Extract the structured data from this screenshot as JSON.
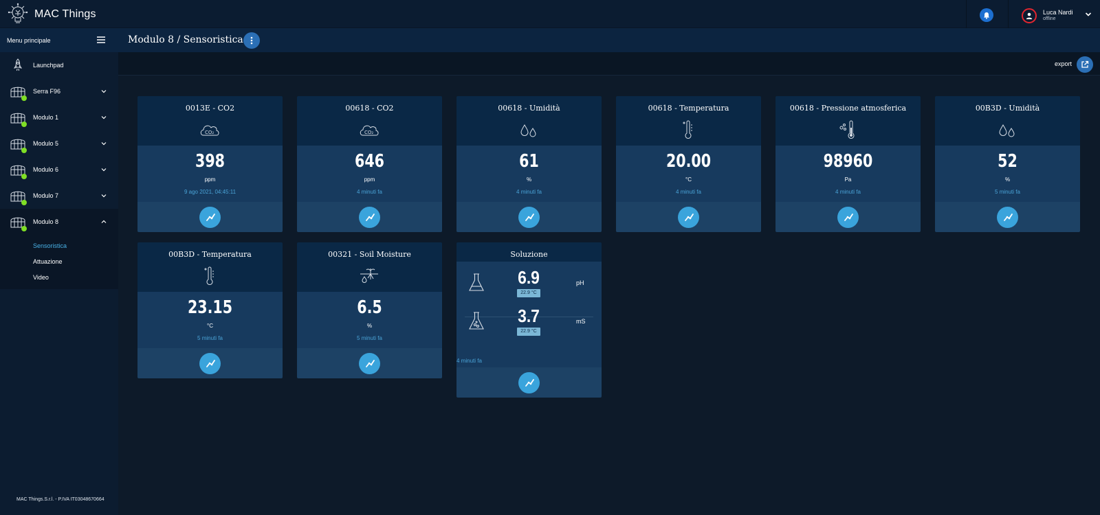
{
  "app": {
    "title": "MAC Things",
    "logo_icon": "lightbulb-network-icon"
  },
  "user": {
    "name": "Luca Nardi",
    "status": "offline",
    "status_color": "#e3262f"
  },
  "colors": {
    "accent": "#3aa4dc",
    "online_dot": "#7fde25",
    "active_subitem": "#49b1e6"
  },
  "sidebar": {
    "header": "Menu principale",
    "items": [
      {
        "label": "Launchpad",
        "icon": "rocket-icon",
        "online": false,
        "chevron": "none"
      },
      {
        "label": "Serra F96",
        "icon": "greenhouse-icon",
        "online": true,
        "chevron": "down"
      },
      {
        "label": "Modulo 1",
        "icon": "greenhouse-icon",
        "online": true,
        "chevron": "down"
      },
      {
        "label": "Modulo 5",
        "icon": "greenhouse-icon",
        "online": true,
        "chevron": "down"
      },
      {
        "label": "Modulo 6",
        "icon": "greenhouse-icon",
        "online": true,
        "chevron": "down"
      },
      {
        "label": "Modulo 7",
        "icon": "greenhouse-icon",
        "online": true,
        "chevron": "down"
      },
      {
        "label": "Modulo 8",
        "icon": "greenhouse-icon",
        "online": true,
        "chevron": "up"
      }
    ],
    "subitems": [
      {
        "label": "Sensoristica",
        "current": true
      },
      {
        "label": "Attuazione",
        "current": false
      },
      {
        "label": "Video",
        "current": false
      }
    ],
    "footer": "MAC Things.S.r.l. - P.IVA IT03048670664"
  },
  "page": {
    "title": "Modulo 8 / Sensoristica",
    "export_label": "export"
  },
  "cards": [
    {
      "title": "0013E - CO2",
      "icon": "co2-cloud-icon",
      "value": "398",
      "unit": "ppm",
      "time": "9 ago 2021, 04:45:11"
    },
    {
      "title": "00618 - CO2",
      "icon": "co2-cloud-icon",
      "value": "646",
      "unit": "ppm",
      "time": "4 minuti fa"
    },
    {
      "title": "00618 - Umidità",
      "icon": "water-drops-icon",
      "value": "61",
      "unit": "%",
      "time": "4 minuti fa"
    },
    {
      "title": "00618 - Temperatura",
      "icon": "thermometer-icon",
      "value": "20.00",
      "unit": "°C",
      "time": "4 minuti fa"
    },
    {
      "title": "00618 - Pressione atmosferica",
      "icon": "pressure-thermometer-icon",
      "value": "98960",
      "unit": "Pa",
      "time": "4 minuti fa"
    },
    {
      "title": "00B3D - Umidità",
      "icon": "water-drops-icon",
      "value": "52",
      "unit": "%",
      "time": "5 minuti fa"
    },
    {
      "title": "00B3D - Temperatura",
      "icon": "thermometer-icon",
      "value": "23.15",
      "unit": "°C",
      "time": "5 minuti fa"
    },
    {
      "title": "00321 - Soil Moisture",
      "icon": "soil-moisture-icon",
      "value": "6.5",
      "unit": "%",
      "time": "5 minuti fa"
    }
  ],
  "solution": {
    "title": "Soluzione",
    "ph": {
      "value": "6.9",
      "temp": "22.9 °C",
      "unit": "pH",
      "icon": "flask-icon"
    },
    "ec": {
      "value": "3.7",
      "temp": "22.9 °C",
      "unit": "mS",
      "icon": "flask-bubbles-icon"
    },
    "time": "4 minuti fa"
  }
}
